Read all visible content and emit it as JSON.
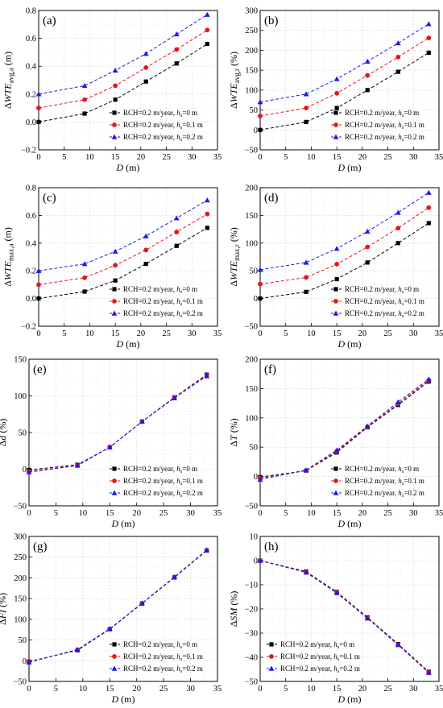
{
  "legend": {
    "labels": [
      "RCH=0.2 m/year, hs=0 m",
      "RCH=0.2 m/year, hs=0.1 m",
      "RCH=0.2 m/year, hs=0.2 m"
    ],
    "prefix": "RCH=0.2 m/year, ",
    "h_symbol": "h",
    "h_sub": "s",
    "values": [
      "=0 m",
      "=0.1 m",
      "=0.2 m"
    ]
  },
  "series_colors": [
    "#000000",
    "#e8141c",
    "#1a1aef"
  ],
  "series_markers": [
    "square",
    "circle",
    "triangle"
  ],
  "chart_data": [
    {
      "type": "line",
      "panel": "(a)",
      "xlabel": "D (m)",
      "ylabel": "ΔWTE_avg,a (m)",
      "xlim": [
        0,
        35
      ],
      "ylim": [
        -0.2,
        0.8
      ],
      "xticks": [
        0,
        5,
        10,
        15,
        20,
        25,
        30,
        35
      ],
      "yticks": [
        -0.2,
        0.0,
        0.2,
        0.4,
        0.6,
        0.8
      ],
      "ytick_labels": [
        "−0.2",
        "0.0",
        "0.2",
        "0.4",
        "0.6",
        "0.8"
      ],
      "grid": true,
      "legend_position": "bottom-right",
      "x": [
        0,
        9,
        15,
        21,
        27,
        33
      ],
      "series": [
        {
          "values": [
            0.0,
            0.06,
            0.16,
            0.29,
            0.42,
            0.56
          ]
        },
        {
          "values": [
            0.1,
            0.16,
            0.26,
            0.39,
            0.52,
            0.66
          ]
        },
        {
          "values": [
            0.2,
            0.26,
            0.37,
            0.49,
            0.63,
            0.77
          ]
        }
      ]
    },
    {
      "type": "line",
      "panel": "(b)",
      "xlabel": "D (m)",
      "ylabel": "ΔWTE_avg,r (%)",
      "xlim": [
        0,
        35
      ],
      "ylim": [
        -50,
        300
      ],
      "xticks": [
        0,
        5,
        10,
        15,
        20,
        25,
        30,
        35
      ],
      "yticks": [
        -50,
        0,
        50,
        100,
        150,
        200,
        250,
        300
      ],
      "ytick_labels": [
        "−50",
        "0",
        "50",
        "100",
        "150",
        "200",
        "250",
        "300"
      ],
      "grid": true,
      "legend_position": "bottom-right",
      "x": [
        0,
        9,
        15,
        21,
        27,
        33
      ],
      "series": [
        {
          "values": [
            0,
            20,
            55,
            100,
            146,
            194
          ]
        },
        {
          "values": [
            35,
            55,
            92,
            137,
            183,
            231
          ]
        },
        {
          "values": [
            70,
            90,
            128,
            172,
            218,
            266
          ]
        }
      ]
    },
    {
      "type": "line",
      "panel": "(c)",
      "xlabel": "D (m)",
      "ylabel": "ΔWTE_max,a (m)",
      "xlim": [
        0,
        35
      ],
      "ylim": [
        -0.2,
        0.8
      ],
      "xticks": [
        0,
        5,
        10,
        15,
        20,
        25,
        30,
        35
      ],
      "yticks": [
        -0.2,
        0.0,
        0.2,
        0.4,
        0.6,
        0.8
      ],
      "ytick_labels": [
        "−0.2",
        "0.0",
        "0.2",
        "0.4",
        "0.6",
        "0.8"
      ],
      "grid": true,
      "legend_position": "bottom-right",
      "x": [
        0,
        9,
        15,
        21,
        27,
        33
      ],
      "series": [
        {
          "values": [
            0.0,
            0.05,
            0.13,
            0.25,
            0.38,
            0.51
          ]
        },
        {
          "values": [
            0.1,
            0.15,
            0.24,
            0.35,
            0.48,
            0.61
          ]
        },
        {
          "values": [
            0.2,
            0.25,
            0.34,
            0.45,
            0.58,
            0.71
          ]
        }
      ]
    },
    {
      "type": "line",
      "panel": "(d)",
      "xlabel": "D (m)",
      "ylabel": "ΔWTE_max,r (%)",
      "xlim": [
        0,
        35
      ],
      "ylim": [
        -50,
        200
      ],
      "xticks": [
        0,
        5,
        10,
        15,
        20,
        25,
        30,
        35
      ],
      "yticks": [
        -50,
        0,
        50,
        100,
        150,
        200
      ],
      "ytick_labels": [
        "−50",
        "0",
        "50",
        "100",
        "150",
        "200"
      ],
      "grid": true,
      "legend_position": "bottom-right",
      "x": [
        0,
        9,
        15,
        21,
        27,
        33
      ],
      "series": [
        {
          "values": [
            0,
            12,
            35,
            65,
            100,
            136
          ]
        },
        {
          "values": [
            26,
            38,
            62,
            93,
            127,
            164
          ]
        },
        {
          "values": [
            52,
            65,
            90,
            121,
            155,
            191
          ]
        }
      ]
    },
    {
      "type": "line",
      "panel": "(e)",
      "xlabel": "D (m)",
      "ylabel": "Δd (%)",
      "xlim": [
        0,
        35
      ],
      "ylim": [
        -50,
        150
      ],
      "xticks": [
        0,
        5,
        10,
        15,
        20,
        25,
        30,
        35
      ],
      "yticks": [
        -50,
        0,
        50,
        100,
        150
      ],
      "ytick_labels": [
        "−50",
        "0",
        "50",
        "100",
        "150"
      ],
      "grid": true,
      "legend_position": "bottom-right",
      "x": [
        0,
        9,
        15,
        21,
        27,
        33
      ],
      "series": [
        {
          "values": [
            -1,
            6,
            30,
            65,
            98,
            129
          ]
        },
        {
          "values": [
            -3,
            5,
            30,
            65,
            98,
            128
          ]
        },
        {
          "values": [
            -4,
            5,
            30,
            65,
            97,
            127
          ]
        }
      ]
    },
    {
      "type": "line",
      "panel": "(f)",
      "xlabel": "D (m)",
      "ylabel": "ΔT (%)",
      "xlim": [
        0,
        35
      ],
      "ylim": [
        -50,
        200
      ],
      "xticks": [
        0,
        5,
        10,
        15,
        20,
        25,
        30,
        35
      ],
      "yticks": [
        -50,
        0,
        50,
        100,
        150,
        200
      ],
      "ytick_labels": [
        "−50",
        "0",
        "50",
        "100",
        "150",
        "200"
      ],
      "grid": true,
      "legend_position": "bottom-right",
      "x": [
        0,
        9,
        15,
        21,
        27,
        33
      ],
      "series": [
        {
          "values": [
            -1,
            10,
            41,
            84,
            122,
            162
          ]
        },
        {
          "values": [
            -3,
            10,
            43,
            85,
            124,
            164
          ]
        },
        {
          "values": [
            -5,
            11,
            45,
            86,
            127,
            166
          ]
        }
      ]
    },
    {
      "type": "line",
      "panel": "(g)",
      "xlabel": "D (m)",
      "ylabel": "ΔFI (%)",
      "xlim": [
        0,
        35
      ],
      "ylim": [
        -50,
        300
      ],
      "xticks": [
        0,
        5,
        10,
        15,
        20,
        25,
        30,
        35
      ],
      "yticks": [
        -50,
        0,
        50,
        100,
        150,
        200,
        250,
        300
      ],
      "ytick_labels": [
        "−50",
        "0",
        "50",
        "100",
        "150",
        "200",
        "250",
        "300"
      ],
      "grid": true,
      "legend_position": "bottom-right",
      "x": [
        0,
        9,
        15,
        21,
        27,
        33
      ],
      "series": [
        {
          "values": [
            -2,
            25,
            76,
            138,
            201,
            266
          ]
        },
        {
          "values": [
            -3,
            26,
            77,
            138,
            202,
            267
          ]
        },
        {
          "values": [
            -4,
            27,
            77,
            139,
            202,
            267
          ]
        }
      ]
    },
    {
      "type": "line",
      "panel": "(h)",
      "xlabel": "D (m)",
      "ylabel": "ΔSM (%)",
      "xlim": [
        0,
        35
      ],
      "ylim": [
        -50,
        10
      ],
      "xticks": [
        0,
        5,
        10,
        15,
        20,
        25,
        30,
        35
      ],
      "yticks": [
        -50,
        -40,
        -30,
        -20,
        -10,
        0,
        10
      ],
      "ytick_labels": [
        "−50",
        "−40",
        "−30",
        "−20",
        "−10",
        "0",
        "10"
      ],
      "grid": true,
      "legend_position": "bottom-left",
      "x": [
        0,
        9,
        15,
        21,
        27,
        33
      ],
      "series": [
        {
          "values": [
            0,
            -4.5,
            -13,
            -23.5,
            -34.5,
            -46
          ]
        },
        {
          "values": [
            0,
            -4.7,
            -13.2,
            -23.7,
            -34.7,
            -46.2
          ]
        },
        {
          "values": [
            0,
            -4.9,
            -13.4,
            -23.9,
            -34.9,
            -46.4
          ]
        }
      ]
    }
  ]
}
